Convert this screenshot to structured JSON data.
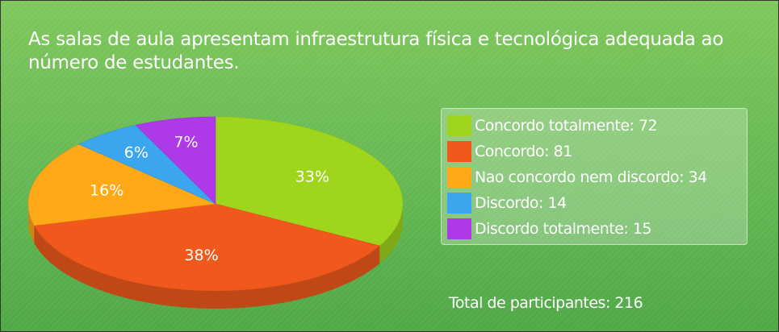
{
  "chart_data": {
    "type": "pie",
    "title": "As salas de aula apresentam infraestrutura física e tecnológica adequada ao número de estudantes.",
    "categories": [
      "Concordo totalmente: 72",
      "Concordo: 81",
      "Nao concordo nem discordo: 34",
      "Discordo: 14",
      "Discordo totalmente: 15"
    ],
    "values": [
      33,
      38,
      16,
      6,
      7
    ],
    "value_labels": [
      "33%",
      "38%",
      "16%",
      "6%",
      "7%"
    ],
    "colors": [
      "#9fd51c",
      "#f0591b",
      "#ffa918",
      "#3ba6ee",
      "#ad3ae6"
    ],
    "total_label": "Total de participantes: 216"
  }
}
